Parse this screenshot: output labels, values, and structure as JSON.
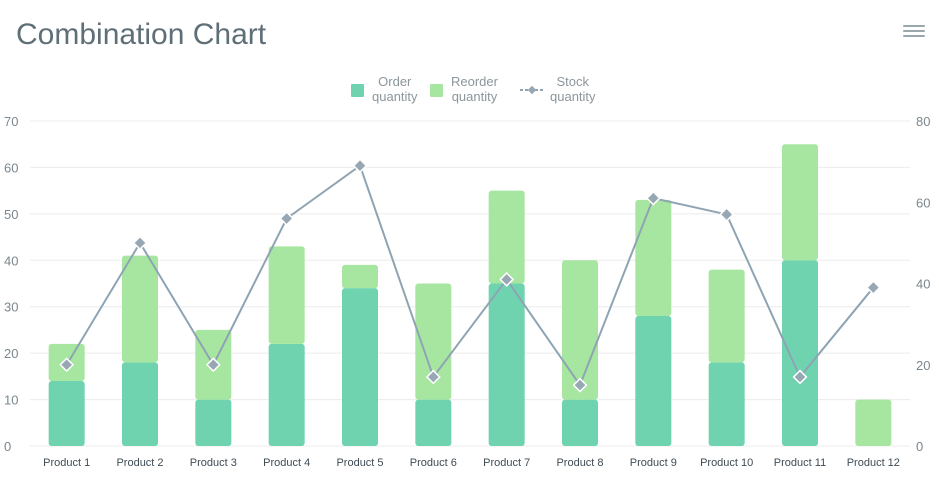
{
  "title": "Combination Chart",
  "menu_icon": "hamburger-menu-icon",
  "colors": {
    "order": "#6fd3b0",
    "reorder": "#a7e6a0",
    "stock_line": "#8fa4b3",
    "stock_marker": "#97a8b4",
    "grid": "#ececec",
    "axis_text": "#7b878e",
    "cat_text": "#3f4b54"
  },
  "legend": {
    "order": "Order\nquantity",
    "reorder": "Reorder\nquantity",
    "stock": "Stock\nquantity"
  },
  "chart_data": {
    "type": "bar",
    "stacked": true,
    "categories": [
      "Product 1",
      "Product 2",
      "Product 3",
      "Product 4",
      "Product 5",
      "Product 6",
      "Product 7",
      "Product 8",
      "Product 9",
      "Product 10",
      "Product 11",
      "Product 12"
    ],
    "series": [
      {
        "name": "Order quantity",
        "type": "bar",
        "axis": "left",
        "values": [
          14,
          18,
          10,
          22,
          34,
          10,
          35,
          10,
          28,
          18,
          40,
          0
        ]
      },
      {
        "name": "Reorder quantity",
        "type": "bar",
        "axis": "left",
        "values": [
          8,
          23,
          15,
          21,
          5,
          25,
          20,
          30,
          25,
          20,
          25,
          10
        ]
      },
      {
        "name": "Stock quantity",
        "type": "line",
        "axis": "right",
        "values": [
          20,
          50,
          20,
          56,
          69,
          17,
          41,
          15,
          61,
          57,
          17,
          39
        ]
      }
    ],
    "y_left": {
      "ylim": [
        0,
        70
      ],
      "ticks": [
        "0",
        "10",
        "20",
        "30",
        "40",
        "50",
        "60",
        "70"
      ]
    },
    "y_right": {
      "ylim": [
        0,
        80
      ],
      "ticks": [
        "0",
        "20",
        "40",
        "60",
        "80"
      ]
    },
    "grid": true,
    "legend_position": "top-center"
  }
}
